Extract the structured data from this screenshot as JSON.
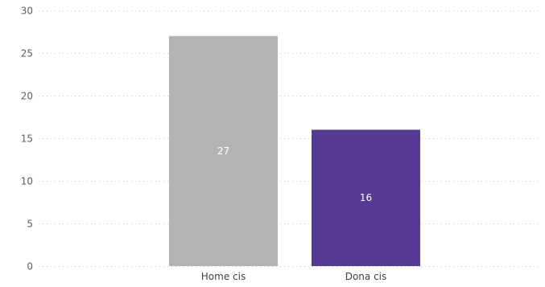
{
  "chart_data": {
    "type": "bar",
    "categories": [
      "Home cis",
      "Dona cis"
    ],
    "values": [
      27,
      16
    ],
    "colors": [
      "#b3b3b3",
      "#553b93"
    ],
    "ylim": [
      0,
      30
    ],
    "yticks": [
      0,
      5,
      10,
      15,
      20,
      25,
      30
    ],
    "title": "",
    "xlabel": "",
    "ylabel": "",
    "grid": true,
    "grid_style": "dotted",
    "data_label_color": "#ffffff"
  }
}
